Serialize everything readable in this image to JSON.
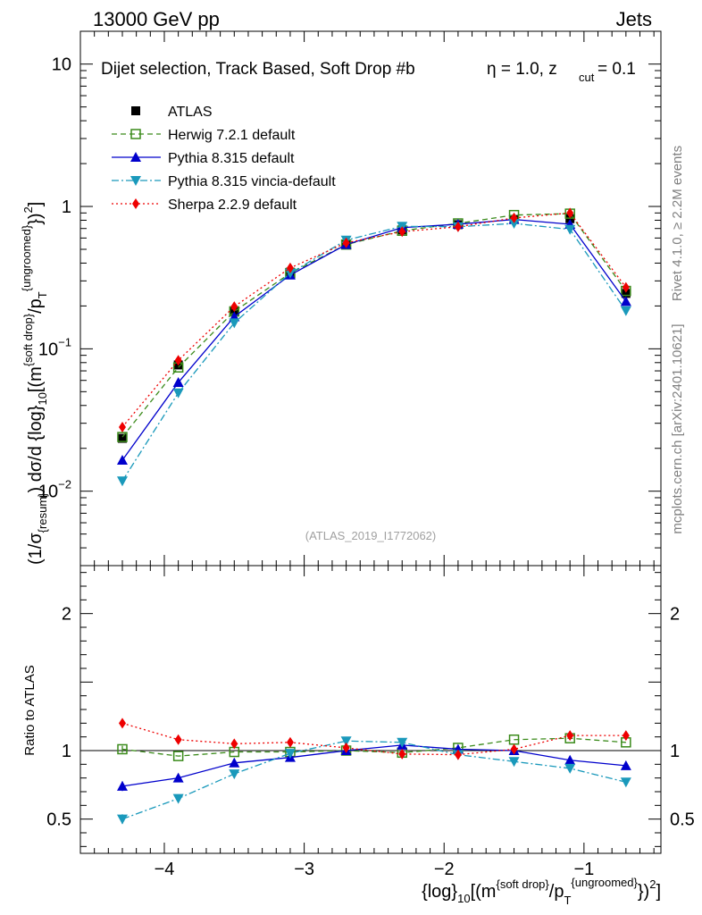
{
  "header": {
    "left": "13000 GeV pp",
    "right": "Jets"
  },
  "side_labels": {
    "rivet": "Rivet 4.1.0, ≥ 2.2M events",
    "mcplots": "mcplots.cern.ch [arXiv:2401.10621]"
  },
  "chart_data": {
    "type": "line",
    "title": "Dijet selection, Track Based, Soft Drop #b",
    "title_suffix": "η = 1.0, z",
    "title_sub": "cut",
    "title_end": " = 0.1",
    "analysis_id": "(ATLAS_2019_I1772062)",
    "xlabel": "{log}_10[(m^{soft drop}/p_T^{ungroomed})^2]",
    "xlabel_parts": {
      "a": "{log}",
      "a_sub": "10",
      "b": "[(m",
      "b_sup": "{soft drop}",
      "c": "/p",
      "c_sub": "T",
      "c_sup": "{ungroomed}",
      "d": "})",
      "d_sup": "2",
      "e": "]"
    },
    "ylabel": "(1/σ_{resum}) dσ/d {log}_10[(m^{soft drop}/p_T^{ungroomed})^2]",
    "ylabel_parts": {
      "a": "(1/σ",
      "a_sub": "{resum}",
      "b": ") dσ/d {log}",
      "b_sub": "10",
      "c": "[(m",
      "c_sup": "{soft drop}",
      "d": "/p",
      "d_sub": "T",
      "d_sup": "{ungroomed}",
      "e": "})",
      "e_sup": "2",
      "f": "]"
    },
    "ratio_ylabel": "Ratio to ATLAS",
    "xlim": [
      -4.6,
      -0.45
    ],
    "ylim_main": [
      0.003,
      17
    ],
    "ylog_main": true,
    "ylim_ratio": [
      0.25,
      2.35
    ],
    "x_ticks": [
      -4,
      -3,
      -2,
      -1
    ],
    "x_tick_labels": [
      "−4",
      "−3",
      "−2",
      "−1"
    ],
    "main_y_ticks": [
      {
        "value": 10,
        "base": "10",
        "exp": ""
      },
      {
        "value": 1,
        "base": "1",
        "exp": ""
      },
      {
        "value": 0.1,
        "base": "10",
        "exp": "−1"
      },
      {
        "value": 0.01,
        "base": "10",
        "exp": "−2"
      }
    ],
    "ratio_y_ticks": [
      {
        "value": 2,
        "label": "2"
      },
      {
        "value": 1,
        "label": "1"
      },
      {
        "value": 0.5,
        "label": "0.5"
      }
    ],
    "x": [
      -4.3,
      -3.9,
      -3.5,
      -3.1,
      -2.7,
      -2.3,
      -1.9,
      -1.5,
      -1.1,
      -0.7
    ],
    "series": [
      {
        "name": "ATLAS",
        "style": "data",
        "color": "#000000",
        "marker": "square",
        "values": [
          0.0235,
          0.077,
          0.185,
          0.345,
          0.54,
          0.685,
          0.745,
          0.81,
          0.82,
          0.245
        ]
      },
      {
        "name": "Herwig 7.2.1 default",
        "style": "dashed",
        "color": "#3a8a1a",
        "marker": "open-square",
        "values": [
          0.024,
          0.074,
          0.183,
          0.34,
          0.54,
          0.675,
          0.76,
          0.87,
          0.89,
          0.255
        ],
        "ratio": [
          1.01,
          0.96,
          0.99,
          0.99,
          1.0,
          0.985,
          1.02,
          1.08,
          1.09,
          1.06
        ],
        "ratio_err": [
          0.025,
          0.0,
          0.0,
          0.0,
          0.0,
          0.0,
          0.0,
          0.0,
          0.0,
          0.0
        ]
      },
      {
        "name": "Pythia 8.315 default",
        "style": "solid",
        "color": "#0000cc",
        "marker": "triangle-up",
        "values": [
          0.0165,
          0.058,
          0.168,
          0.33,
          0.54,
          0.71,
          0.75,
          0.81,
          0.75,
          0.215
        ],
        "ratio": [
          0.74,
          0.8,
          0.91,
          0.95,
          1.0,
          1.04,
          1.01,
          1.0,
          0.93,
          0.89
        ],
        "ratio_err": [
          0.035,
          0.015,
          0.0,
          0.0,
          0.0,
          0.0,
          0.0,
          0.0,
          0.0,
          0.0
        ]
      },
      {
        "name": "Pythia 8.315 vincia-default",
        "style": "dashdot",
        "color": "#1a99bb",
        "marker": "triangle-down",
        "values": [
          0.0118,
          0.049,
          0.152,
          0.34,
          0.58,
          0.725,
          0.72,
          0.76,
          0.69,
          0.185
        ],
        "ratio": [
          0.5,
          0.65,
          0.83,
          0.98,
          1.07,
          1.06,
          0.97,
          0.92,
          0.87,
          0.77
        ],
        "ratio_err": [
          0.035,
          0.02,
          0.0,
          0.0,
          0.0,
          0.0,
          0.0,
          0.0,
          0.0,
          0.0
        ]
      },
      {
        "name": "Sherpa 2.2.9 default",
        "style": "dotted",
        "color": "#ee0000",
        "marker": "diamond",
        "values": [
          0.0282,
          0.083,
          0.198,
          0.37,
          0.555,
          0.665,
          0.72,
          0.83,
          0.9,
          0.27
        ],
        "ratio": [
          1.2,
          1.08,
          1.05,
          1.06,
          1.02,
          0.975,
          0.97,
          1.01,
          1.11,
          1.11
        ],
        "ratio_err": [
          0.03,
          0.0,
          0.0,
          0.0,
          0.0,
          0.0,
          0.0,
          0.0,
          0.0,
          0.0
        ]
      }
    ]
  }
}
